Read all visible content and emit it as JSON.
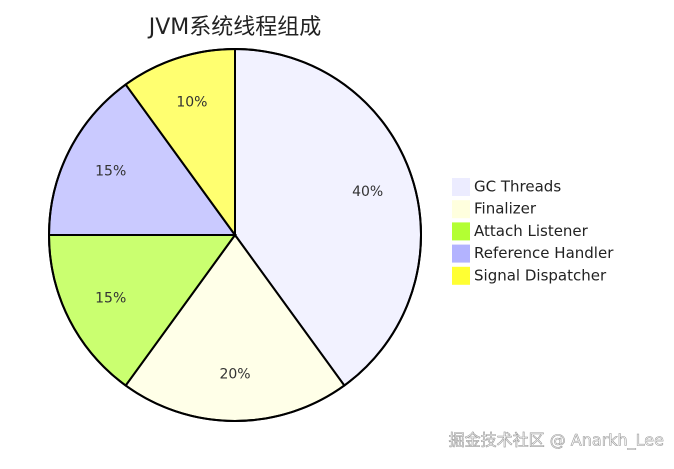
{
  "chart_data": {
    "type": "pie",
    "title": "JVM系统线程组成",
    "categories": [
      "GC Threads",
      "Finalizer",
      "Attach Listener",
      "Reference Handler",
      "Signal Dispatcher"
    ],
    "values": [
      40,
      20,
      15,
      15,
      10
    ],
    "value_labels": [
      "40%",
      "20%",
      "15%",
      "15%",
      "10%"
    ],
    "colors": [
      "#ececff",
      "#ffffde",
      "#b3ff33",
      "#b3b3ff",
      "#ffff33"
    ],
    "legend": "right"
  },
  "watermark": "掘金技术社区 @ Anarkh_Lee"
}
